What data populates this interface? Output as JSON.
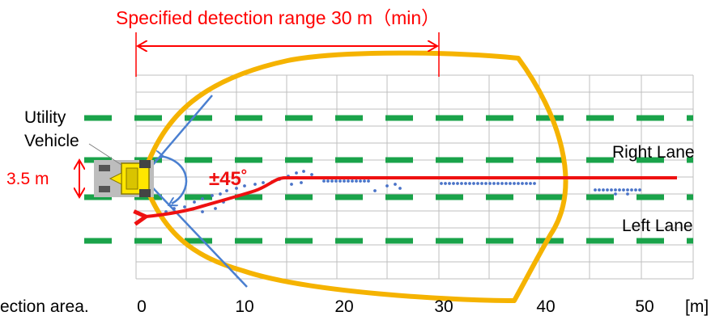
{
  "title": "Specified detection range 30 m（min）",
  "labels": {
    "vehicle_line1": "Utility",
    "vehicle_line2": "Vehicle",
    "lane_width": "3.5 m",
    "angle": "±45˚",
    "right_lane": "Right Lane",
    "left_lane": "Left Lane",
    "caption_fragment": "ection area."
  },
  "axis": {
    "ticks": [
      "0",
      "10",
      "20",
      "30",
      "40",
      "50"
    ],
    "unit": "[m]"
  },
  "colors": {
    "title": "#ff0000",
    "dimension": "#ff0000",
    "grid": "#bfbfbf",
    "lane_marking": "#1aa34a",
    "detection_area": "#f5b300",
    "sensor_fov": "#4a7fd0",
    "trajectory": "#ee1111",
    "detections": "#4a73c8",
    "vehicle_body": "#ffe600",
    "vehicle_base": "#bdbdbd"
  },
  "icons": {
    "vehicle": "utility-vehicle-icon"
  }
}
